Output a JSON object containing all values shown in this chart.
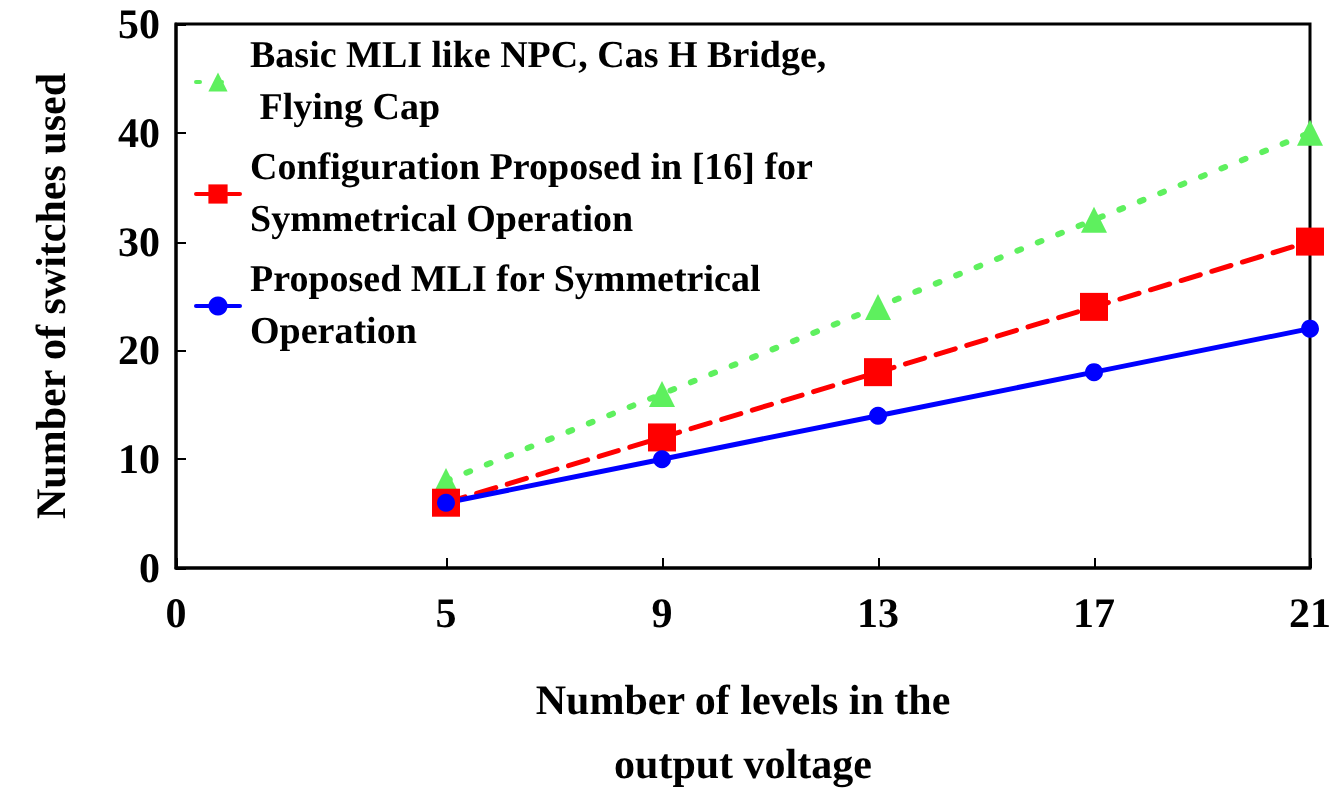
{
  "chart_data": {
    "type": "line",
    "xlabel": "Number of levels in the\noutput voltage",
    "ylabel": "Number of switches used",
    "x": [
      5,
      9,
      13,
      17,
      21
    ],
    "series": [
      {
        "name": "Basic MLI like NPC, Cas H Bridge, Flying Cap",
        "color": "#5ef05e",
        "marker": "triangle",
        "line_style": "dotted",
        "values": [
          8,
          16,
          24,
          32,
          40
        ]
      },
      {
        "name": "Configuration Proposed in [16] for Symmetrical Operation",
        "color": "#ff0000",
        "marker": "square",
        "line_style": "dashed",
        "values": [
          6,
          12,
          18,
          24,
          30
        ]
      },
      {
        "name": "Proposed MLI for Symmetrical Operation",
        "color": "#0000ff",
        "marker": "circle",
        "line_style": "solid",
        "values": [
          6,
          10,
          14,
          18,
          22
        ]
      }
    ],
    "xlim": [
      0,
      21
    ],
    "xticks": [
      0,
      5,
      9,
      13,
      17,
      21
    ],
    "ylim": [
      0,
      50
    ],
    "yticks": [
      0,
      10,
      20,
      30,
      40,
      50
    ],
    "grid": false,
    "legend": "top left"
  }
}
